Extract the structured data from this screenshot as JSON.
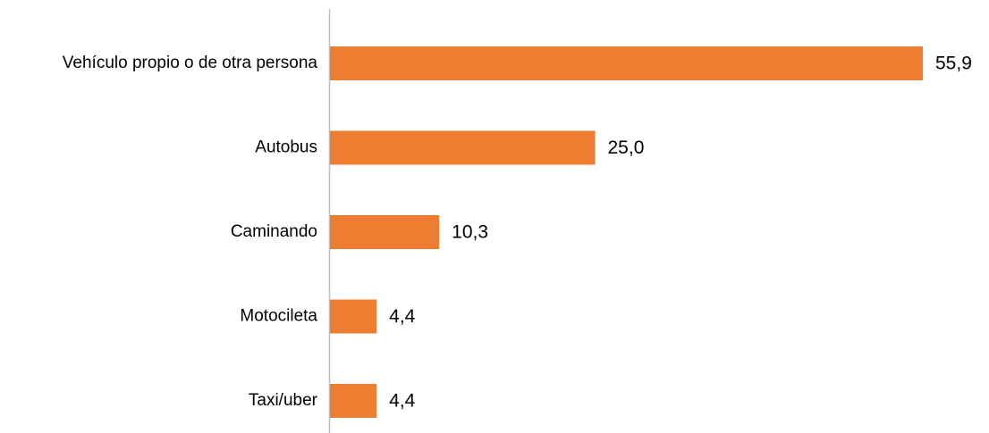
{
  "chart_data": {
    "type": "bar",
    "orientation": "horizontal",
    "categories": [
      "Vehículo propio o de otra persona",
      "Autobus",
      "Caminando",
      "Motocileta",
      "Taxi/uber"
    ],
    "values": [
      55.9,
      25.0,
      10.3,
      4.4,
      4.4
    ],
    "value_labels": [
      "55,9",
      "25,0",
      "10,3",
      "4,4",
      "4,4"
    ],
    "color": "#ed7d31"
  }
}
